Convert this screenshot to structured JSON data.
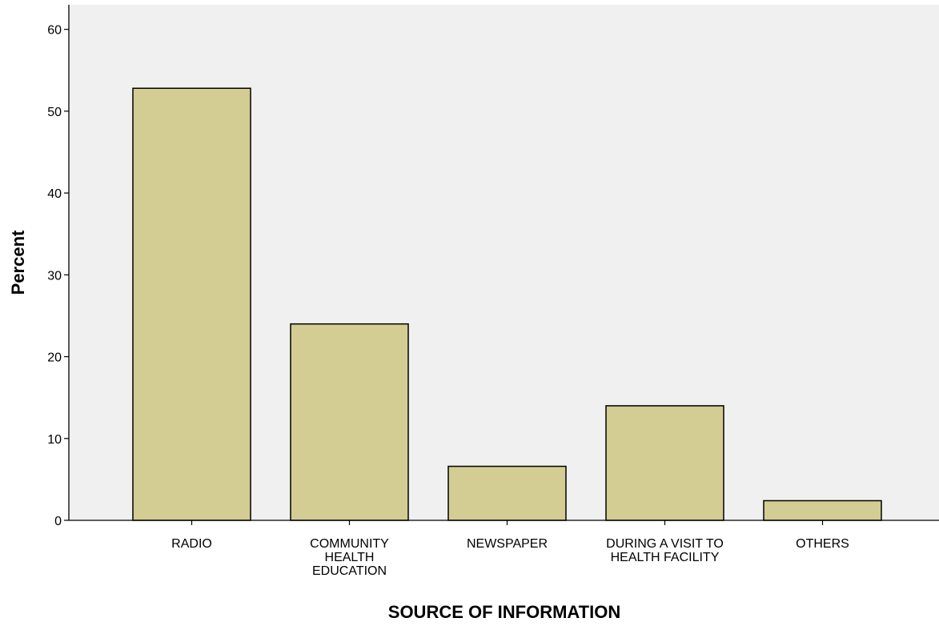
{
  "chart_data": {
    "type": "bar",
    "categories": [
      "RADIO",
      "COMMUNITY HEALTH EDUCATION",
      "NEWSPAPER",
      "DURING A VISIT TO HEALTH FACILITY",
      "OTHERS"
    ],
    "category_label_lines": [
      [
        "RADIO"
      ],
      [
        "COMMUNITY",
        "HEALTH",
        "EDUCATION"
      ],
      [
        "NEWSPAPER"
      ],
      [
        "DURING A VISIT TO",
        "HEALTH FACILITY"
      ],
      [
        "OTHERS"
      ]
    ],
    "values": [
      52.8,
      24.0,
      6.6,
      14.0,
      2.4
    ],
    "xlabel": "SOURCE OF INFORMATION",
    "ylabel": "Percent",
    "ylim": [
      0,
      63
    ],
    "yticks": [
      0,
      10,
      20,
      30,
      40,
      50,
      60
    ],
    "grid": false,
    "colors": {
      "bar_fill": "#d3cd94",
      "bar_stroke": "#000000",
      "plot_background": "#f0f0f0"
    }
  }
}
